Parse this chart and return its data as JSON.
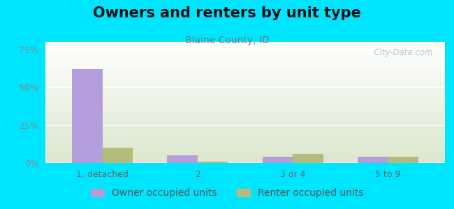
{
  "title": "Owners and renters by unit type",
  "subtitle": "Blaine County, ID",
  "categories": [
    "1, detached",
    "2",
    "3 or 4",
    "5 to 9"
  ],
  "owner_values": [
    62,
    5,
    4,
    4
  ],
  "renter_values": [
    10,
    1,
    6,
    4
  ],
  "owner_color": "#b39ddb",
  "renter_color": "#b5bb7a",
  "background_outer": "#00e5ff",
  "background_inner_top": "#ffffff",
  "background_inner_bottom": "#dde8d0",
  "ylabel_ticks": [
    0,
    25,
    50,
    75
  ],
  "ylabel_labels": [
    "0%",
    "25%",
    "50%",
    "75%"
  ],
  "ylim": [
    0,
    80
  ],
  "bar_width": 0.32,
  "title_fontsize": 15,
  "subtitle_fontsize": 10,
  "tick_fontsize": 9,
  "legend_fontsize": 10,
  "watermark": "  City-Data.com"
}
